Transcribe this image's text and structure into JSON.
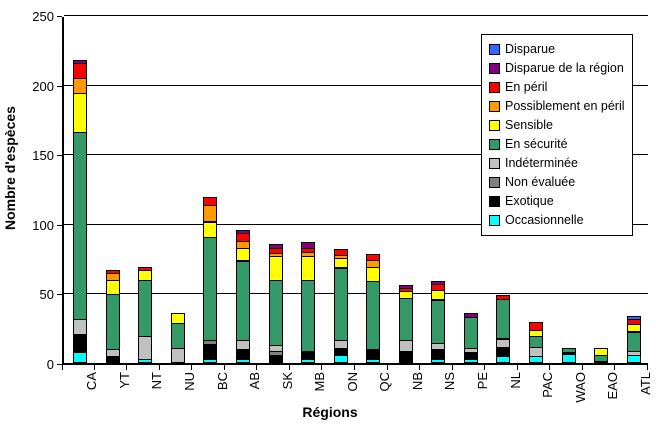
{
  "chart_data": {
    "type": "bar",
    "subtype": "stacked-vertical",
    "title": "",
    "xlabel": "Régions",
    "ylabel": "Nombre d'espèces",
    "ylim": [
      0,
      250
    ],
    "yticks": [
      0,
      50,
      100,
      150,
      200,
      250
    ],
    "grid": "horizontal",
    "legend_position": "top-right-inside",
    "categories": [
      "CA",
      "YT",
      "NT",
      "NU",
      "BC",
      "AB",
      "SK",
      "MB",
      "ON",
      "QC",
      "NB",
      "NS",
      "PE",
      "NL",
      "PAC",
      "WAO",
      "EAO",
      "ATL"
    ],
    "legend": [
      {
        "label": "Disparue",
        "color": "#3366FF"
      },
      {
        "label": "Disparue de la région",
        "color": "#800080"
      },
      {
        "label": "En péril",
        "color": "#FF0000"
      },
      {
        "label": "Possiblement en péril",
        "color": "#FF9900"
      },
      {
        "label": "Sensible",
        "color": "#FFFF00"
      },
      {
        "label": "En sécurité",
        "color": "#339966"
      },
      {
        "label": "Indéterminée",
        "color": "#C0C0C0"
      },
      {
        "label": "Non évaluée",
        "color": "#808080"
      },
      {
        "label": "Exotique",
        "color": "#000000"
      },
      {
        "label": "Occasionnelle",
        "color": "#00FFFF"
      }
    ],
    "series_bottom_to_top": [
      {
        "name": "Occasionnelle",
        "color": "#00FFFF",
        "values": [
          7,
          0,
          2,
          0,
          2,
          2,
          1,
          2,
          5,
          2,
          1,
          2,
          2,
          4,
          4,
          6,
          0,
          5
        ]
      },
      {
        "name": "Exotique",
        "color": "#000000",
        "values": [
          13,
          4,
          0,
          0,
          11,
          7,
          4,
          6,
          5,
          7,
          7,
          7,
          5,
          7,
          0,
          0,
          0,
          0
        ]
      },
      {
        "name": "Non évaluée",
        "color": "#808080",
        "values": [
          0,
          0,
          0,
          0,
          3,
          0,
          3,
          0,
          0,
          0,
          0,
          0,
          0,
          0,
          0,
          1,
          1,
          0
        ]
      },
      {
        "name": "Indéterminée",
        "color": "#C0C0C0",
        "values": [
          11,
          5,
          17,
          10,
          0,
          7,
          4,
          0,
          6,
          0,
          8,
          5,
          3,
          6,
          7,
          0,
          0,
          3
        ]
      },
      {
        "name": "En sécurité",
        "color": "#339966",
        "values": [
          134,
          40,
          40,
          18,
          74,
          57,
          47,
          51,
          52,
          49,
          30,
          31,
          22,
          28,
          8,
          3,
          4,
          14
        ]
      },
      {
        "name": "Sensible",
        "color": "#FFFF00",
        "values": [
          28,
          10,
          7,
          7,
          11,
          9,
          17,
          17,
          7,
          10,
          5,
          7,
          0,
          0,
          4,
          0,
          5,
          5
        ]
      },
      {
        "name": "Possiblement en péril",
        "color": "#FF9900",
        "values": [
          11,
          5,
          0,
          0,
          12,
          5,
          2,
          3,
          2,
          5,
          0,
          0,
          0,
          0,
          0,
          0,
          0,
          0
        ]
      },
      {
        "name": "En péril",
        "color": "#FF0000",
        "values": [
          11,
          2,
          2,
          0,
          6,
          6,
          4,
          3,
          4,
          4,
          2,
          4,
          0,
          3,
          6,
          0,
          0,
          4
        ]
      },
      {
        "name": "Disparue de la région",
        "color": "#800080",
        "values": [
          2,
          0,
          0,
          0,
          0,
          2,
          3,
          4,
          0,
          0,
          2,
          2,
          3,
          0,
          0,
          0,
          0,
          0
        ]
      },
      {
        "name": "Disparue",
        "color": "#3366FF",
        "values": [
          0,
          0,
          0,
          0,
          0,
          0,
          0,
          0,
          0,
          0,
          0,
          0,
          0,
          0,
          0,
          0,
          0,
          2
        ]
      }
    ]
  }
}
